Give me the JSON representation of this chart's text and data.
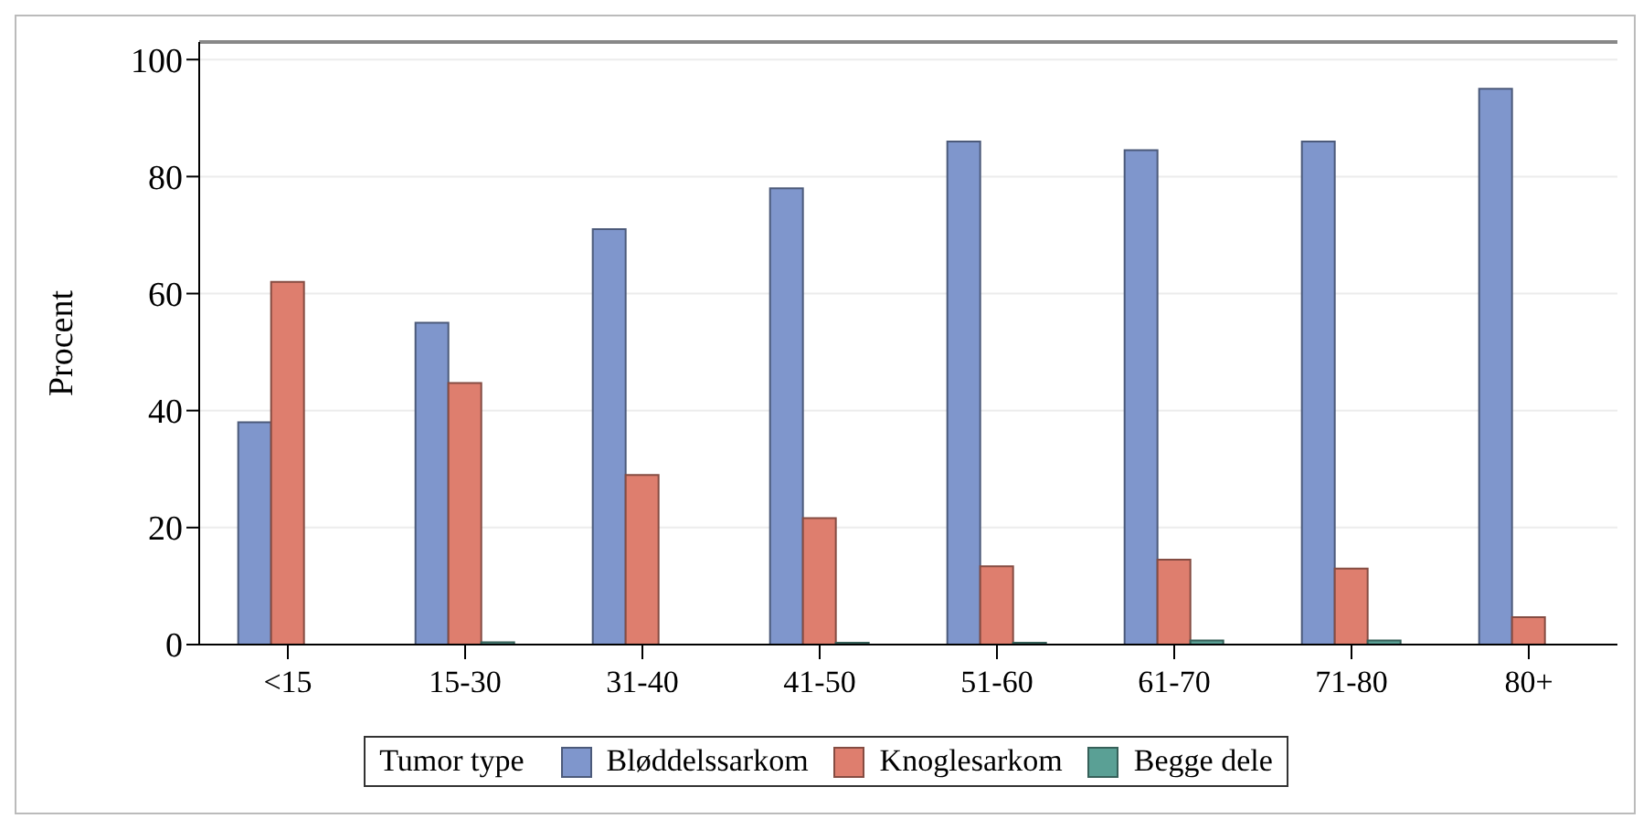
{
  "chart_data": {
    "type": "bar",
    "ylabel": "Procent",
    "legend_title": "Tumor type",
    "categories": [
      "<15",
      "15-30",
      "31-40",
      "41-50",
      "51-60",
      "61-70",
      "71-80",
      "80+"
    ],
    "series": [
      {
        "name": "Bløddelssarkom",
        "color": "#7f96cc",
        "values": [
          38,
          55,
          71,
          78,
          86,
          84.5,
          86,
          95
        ]
      },
      {
        "name": "Knoglesarkom",
        "color": "#de7e6e",
        "values": [
          62,
          44.7,
          29,
          21.6,
          13.4,
          14.5,
          13,
          4.7
        ]
      },
      {
        "name": "Begge dele",
        "color": "#5aa095",
        "values": [
          0,
          0.4,
          0,
          0.3,
          0.3,
          0.7,
          0.7,
          0
        ]
      }
    ],
    "ylim": [
      0,
      103
    ],
    "yticks": [
      0,
      20,
      40,
      60,
      80,
      100
    ],
    "grid": "y",
    "legend": "bottom"
  }
}
